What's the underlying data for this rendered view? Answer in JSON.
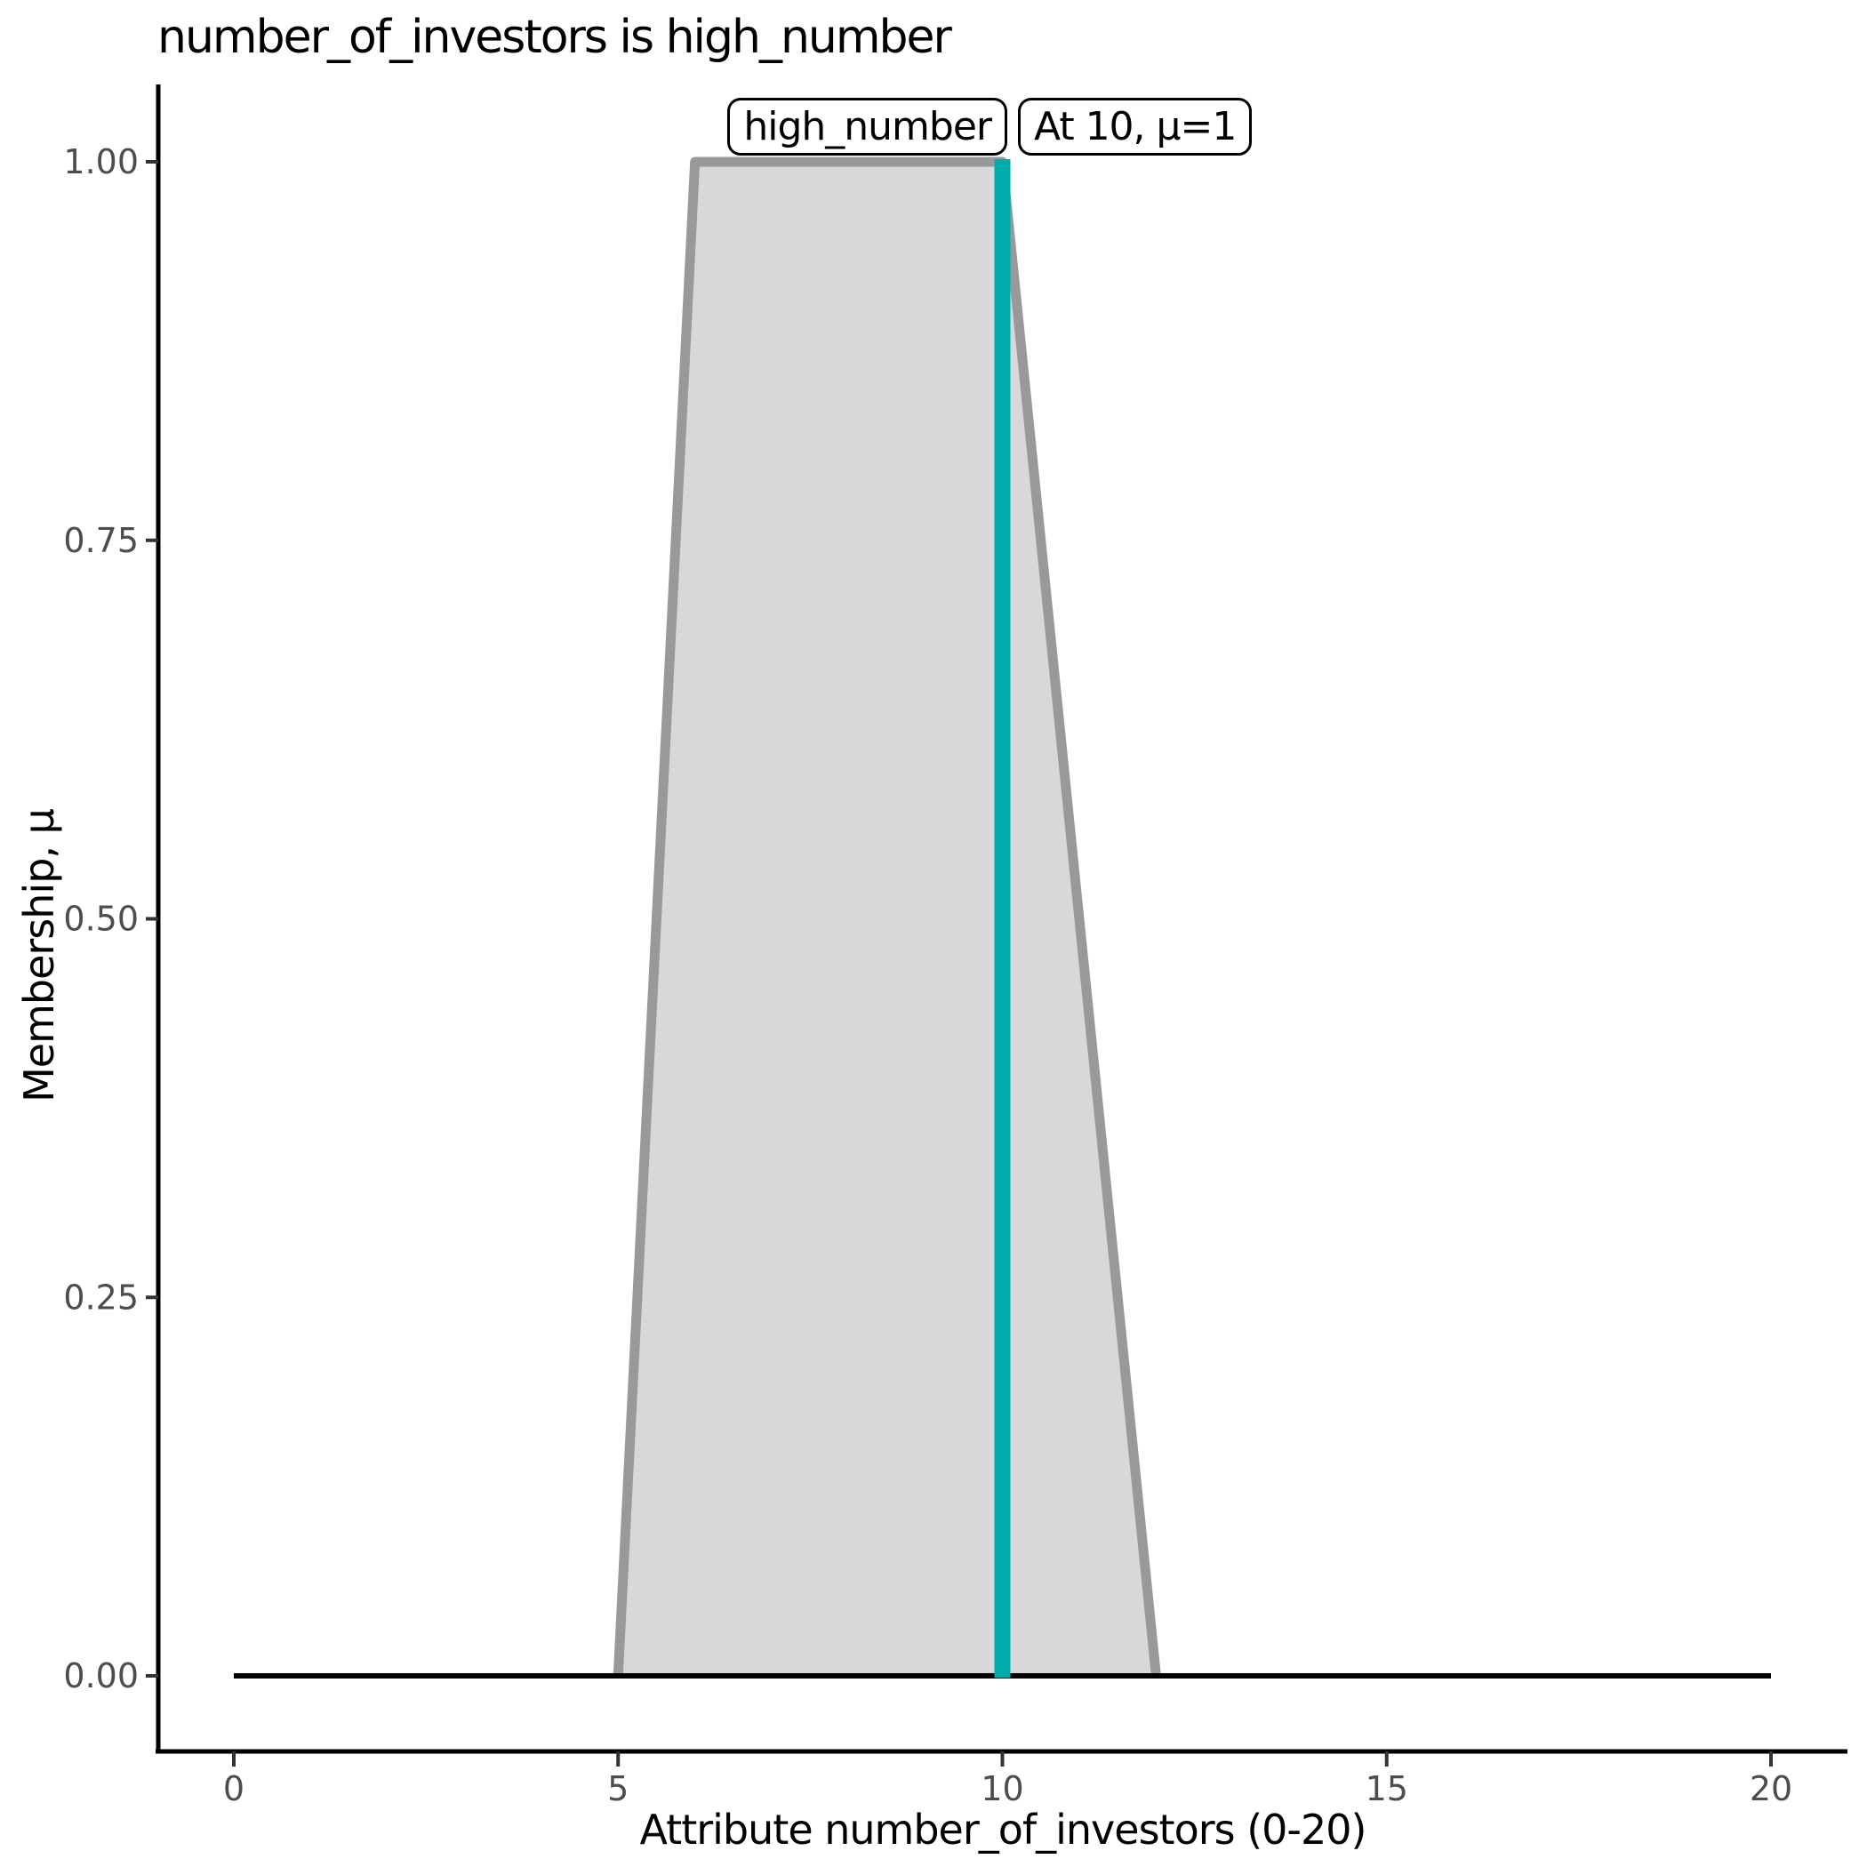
{
  "chart_data": {
    "type": "area",
    "title": "number_of_investors is high_number",
    "xlabel": "Attribute number_of_investors (0-20)",
    "ylabel": "Membership, μ",
    "xlim": [
      0,
      20
    ],
    "ylim": [
      0,
      1
    ],
    "x_ticks": [
      0,
      5,
      10,
      15,
      20
    ],
    "y_ticks": [
      0,
      0.25,
      0.5,
      0.75,
      1
    ],
    "y_tick_labels": [
      "0.00",
      "0.25",
      "0.50",
      "0.75",
      "1.00"
    ],
    "grid": false,
    "legend": "none",
    "series": [
      {
        "name": "baseline",
        "type": "line",
        "points": [
          [
            0,
            0
          ],
          [
            20,
            0
          ]
        ],
        "color": "#000000"
      },
      {
        "name": "high_number_membership_function",
        "type": "trapezoid",
        "points": [
          [
            5,
            0
          ],
          [
            6,
            1
          ],
          [
            10,
            1
          ],
          [
            12,
            0
          ]
        ],
        "fill": "#d8d8d8",
        "stroke": "#999999"
      },
      {
        "name": "input_value",
        "type": "vline",
        "x": 10,
        "mu": 1,
        "color": "#00abab"
      }
    ],
    "annotations": [
      {
        "text": "high_number",
        "anchor_x": 10,
        "align": "right"
      },
      {
        "text": "At 10, μ=1",
        "anchor_x": 10,
        "align": "left"
      }
    ]
  },
  "colors": {
    "background": "#ffffff",
    "axis": "#000000",
    "tick_label": "#4d4d4d",
    "mf_fill": "#d8d8d8",
    "mf_stroke": "#999999",
    "input_line": "#00abab"
  }
}
